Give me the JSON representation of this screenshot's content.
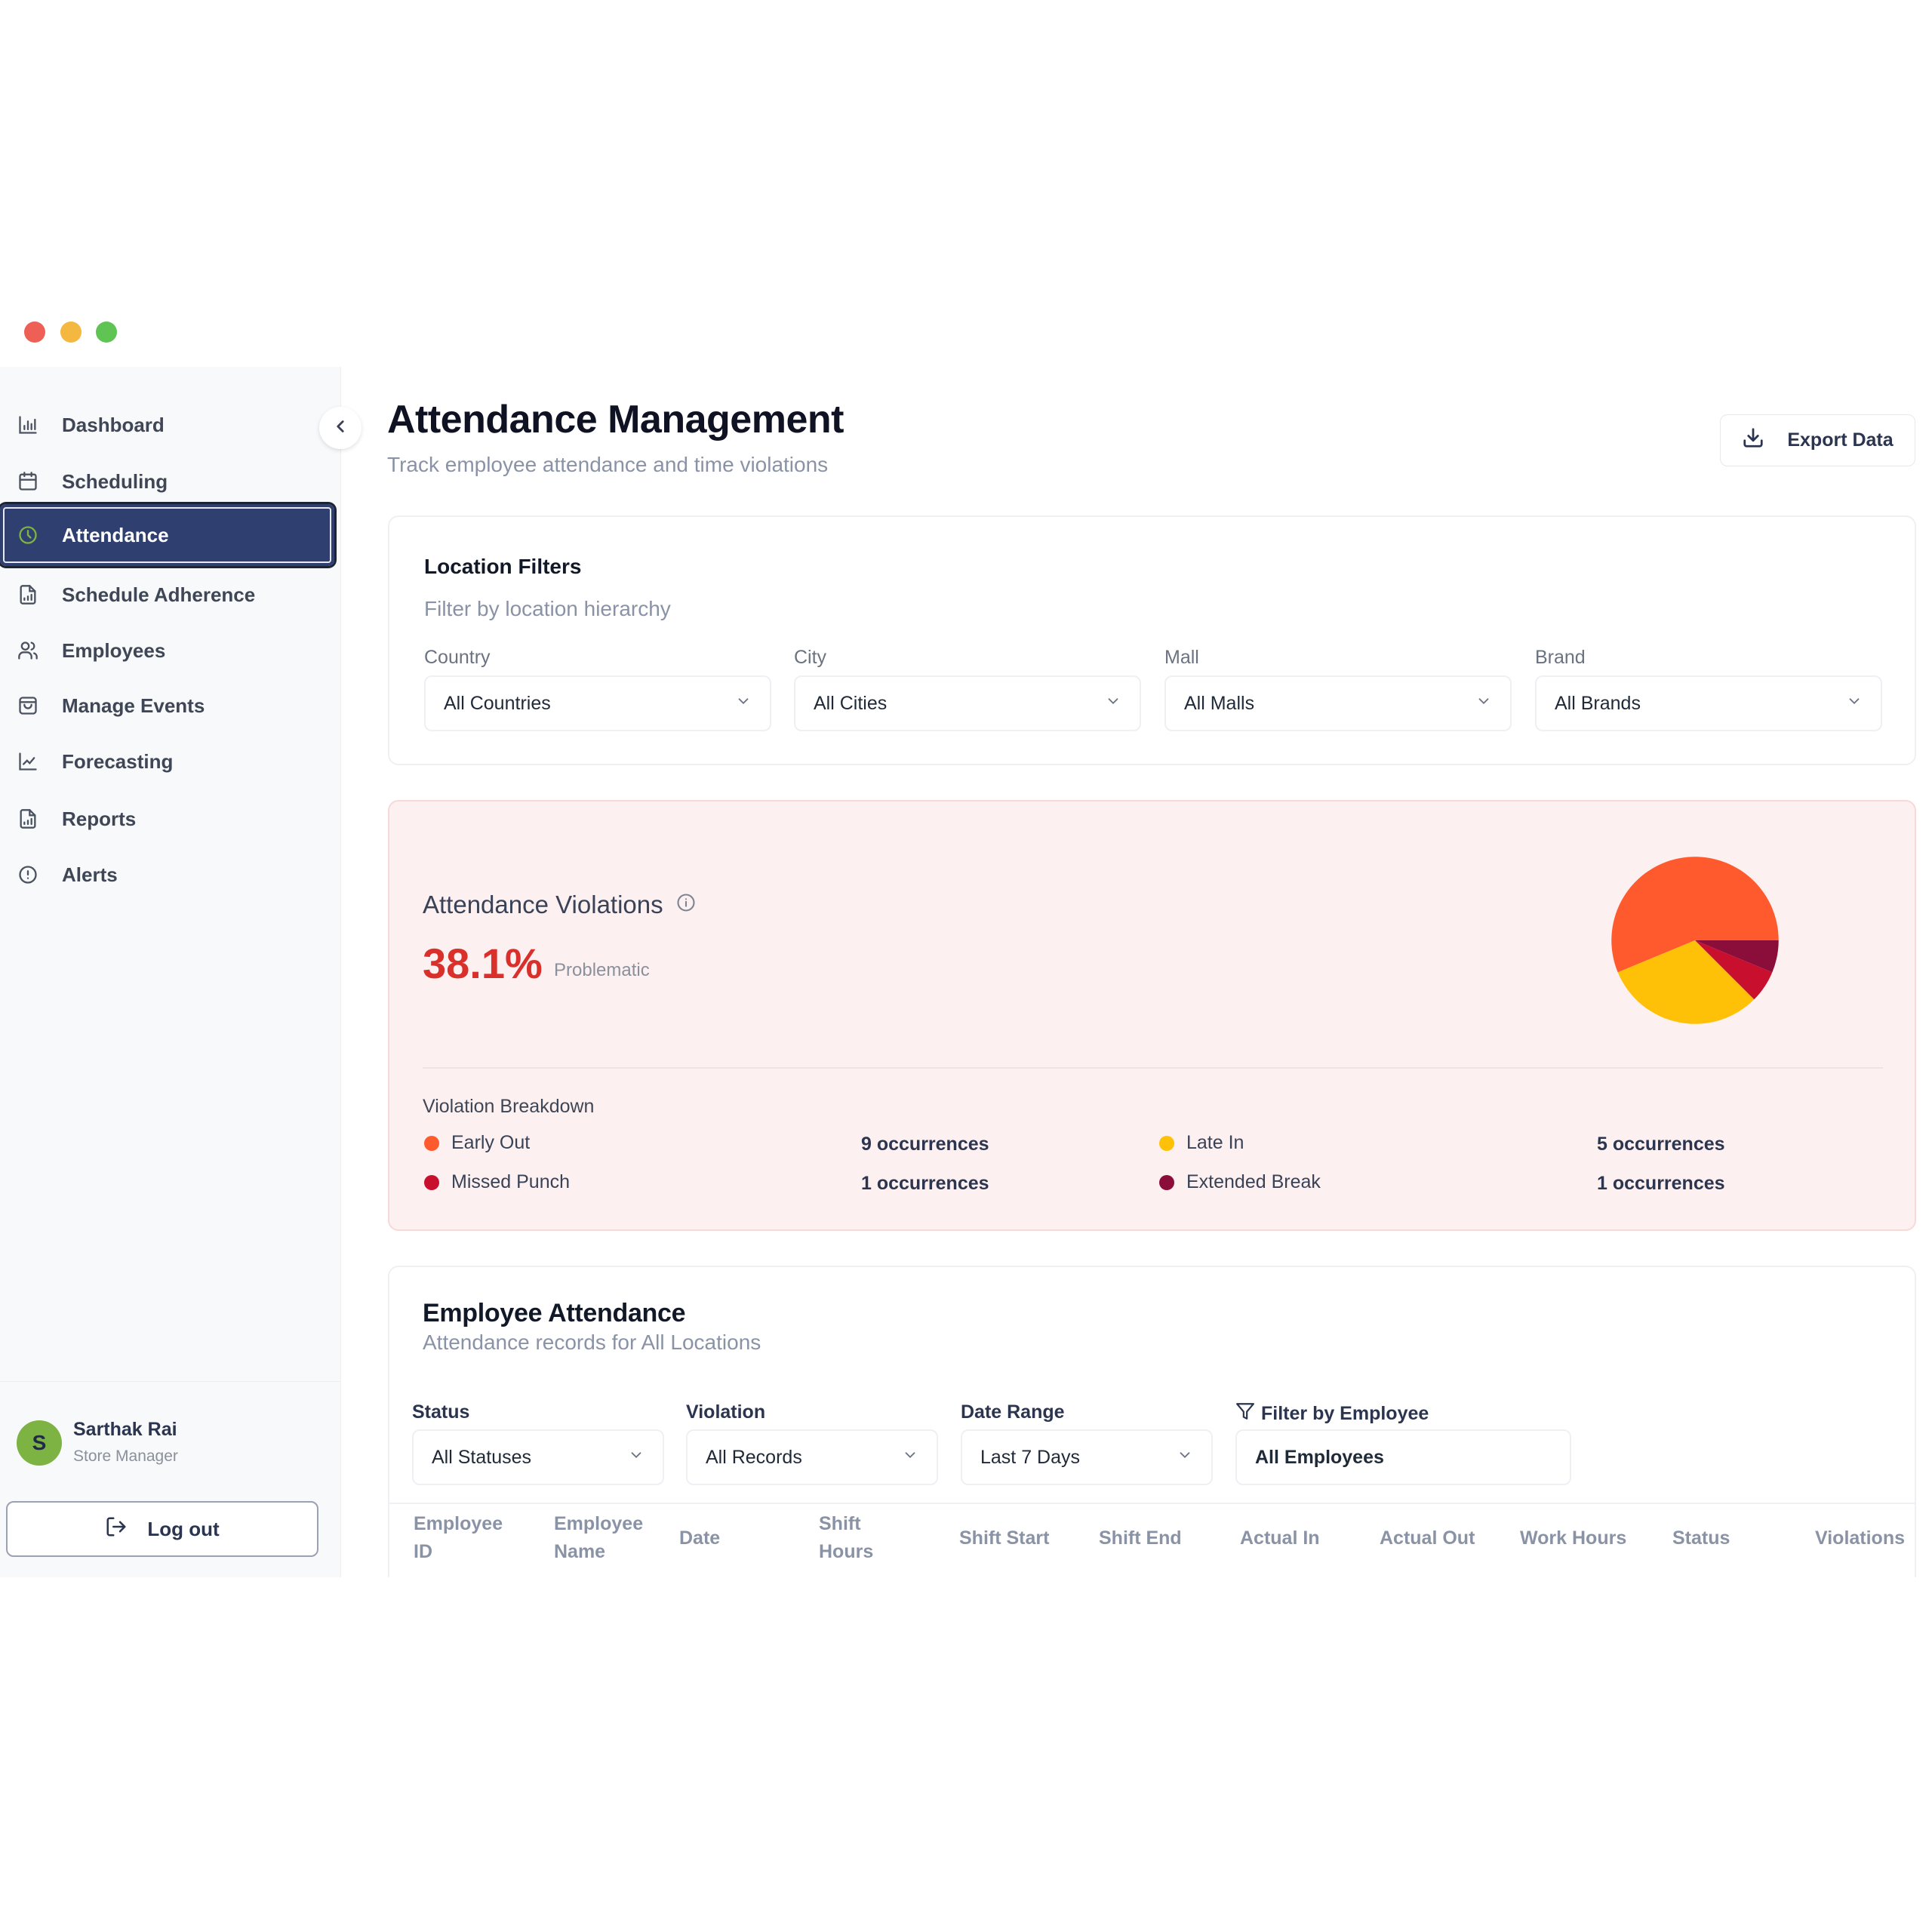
{
  "window": {
    "controls": [
      "close",
      "minimize",
      "maximize"
    ]
  },
  "sidebar": {
    "items": [
      {
        "label": "Dashboard",
        "icon": "bar-chart-icon",
        "active": false
      },
      {
        "label": "Scheduling",
        "icon": "calendar-icon",
        "active": false
      },
      {
        "label": "Attendance",
        "icon": "clock-icon",
        "active": true
      },
      {
        "label": "Schedule Adherence",
        "icon": "file-chart-icon",
        "active": false
      },
      {
        "label": "Employees",
        "icon": "users-icon",
        "active": false
      },
      {
        "label": "Manage Events",
        "icon": "shopping-bag-icon",
        "active": false
      },
      {
        "label": "Forecasting",
        "icon": "line-chart-icon",
        "active": false
      },
      {
        "label": "Reports",
        "icon": "file-chart-icon",
        "active": false
      },
      {
        "label": "Alerts",
        "icon": "alert-circle-icon",
        "active": false
      }
    ],
    "collapse_icon": "chevron-left-icon",
    "user": {
      "initial": "S",
      "name": "Sarthak Rai",
      "role": "Store Manager"
    },
    "logout_label": "Log out"
  },
  "header": {
    "title": "Attendance Management",
    "subtitle": "Track employee attendance and time violations",
    "export_label": "Export Data"
  },
  "location_filters": {
    "title": "Location Filters",
    "subtitle": "Filter by location hierarchy",
    "fields": [
      {
        "label": "Country",
        "value": "All Countries"
      },
      {
        "label": "City",
        "value": "All Cities"
      },
      {
        "label": "Mall",
        "value": "All Malls"
      },
      {
        "label": "Brand",
        "value": "All Brands"
      }
    ]
  },
  "violations": {
    "title": "Attendance Violations",
    "percentage": "38.1%",
    "status": "Problematic",
    "breakdown_title": "Violation Breakdown",
    "items": [
      {
        "label": "Early Out",
        "count": "9 occurrences",
        "color": "#FF5A2E"
      },
      {
        "label": "Late In",
        "count": "5 occurrences",
        "color": "#FFC107"
      },
      {
        "label": "Missed Punch",
        "count": "1 occurrences",
        "color": "#C8102E"
      },
      {
        "label": "Extended Break",
        "count": "1 occurrences",
        "color": "#8B0E3A"
      }
    ]
  },
  "chart_data": {
    "type": "pie",
    "title": "Attendance Violations",
    "categories": [
      "Early Out",
      "Late In",
      "Missed Punch",
      "Extended Break"
    ],
    "values": [
      9,
      5,
      1,
      1
    ],
    "colors": [
      "#FF5A2E",
      "#FFC107",
      "#C8102E",
      "#8B0E3A"
    ],
    "legend_position": "below"
  },
  "employee_attendance": {
    "title": "Employee Attendance",
    "subtitle": "Attendance records for All Locations",
    "filters": [
      {
        "label": "Status",
        "value": "All Statuses"
      },
      {
        "label": "Violation",
        "value": "All Records"
      },
      {
        "label": "Date Range",
        "value": "Last 7 Days"
      }
    ],
    "employee_filter": {
      "label": "Filter by Employee",
      "value": "All Employees"
    },
    "columns": [
      [
        "Employee",
        "ID"
      ],
      [
        "Employee",
        "Name"
      ],
      [
        "Date"
      ],
      [
        "Shift",
        "Hours"
      ],
      [
        "Shift Start"
      ],
      [
        "Shift End"
      ],
      [
        "Actual In"
      ],
      [
        "Actual Out"
      ],
      [
        "Work Hours"
      ],
      [
        "Status"
      ],
      [
        "Violations"
      ]
    ]
  }
}
